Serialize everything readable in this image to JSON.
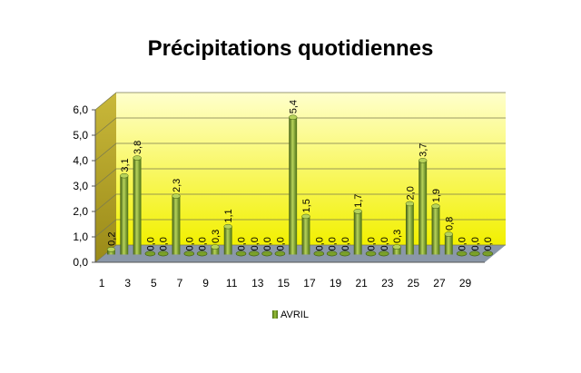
{
  "chart_data": {
    "type": "bar",
    "title": "Précipitations quotidiennes",
    "xlabel": "",
    "ylabel": "",
    "ylim": [
      0,
      6
    ],
    "yticks": [
      "0,0",
      "1,0",
      "2,0",
      "3,0",
      "4,0",
      "5,0",
      "6,0"
    ],
    "categories": [
      "1",
      "2",
      "3",
      "4",
      "5",
      "6",
      "7",
      "8",
      "9",
      "10",
      "11",
      "12",
      "13",
      "14",
      "15",
      "16",
      "17",
      "18",
      "19",
      "20",
      "21",
      "22",
      "23",
      "24",
      "25",
      "26",
      "27",
      "28",
      "29",
      "30"
    ],
    "xtick_labels": [
      "1",
      "3",
      "5",
      "7",
      "9",
      "11",
      "13",
      "15",
      "17",
      "19",
      "21",
      "23",
      "25",
      "27",
      "29"
    ],
    "series": [
      {
        "name": "AVRIL",
        "values": [
          0.2,
          3.1,
          3.8,
          0.0,
          0.0,
          2.3,
          0.0,
          0.0,
          0.3,
          1.1,
          0.0,
          0.0,
          0.0,
          0.0,
          5.4,
          1.5,
          0.0,
          0.0,
          0.0,
          1.7,
          0.0,
          0.0,
          0.3,
          2.0,
          3.7,
          1.9,
          0.8,
          0.0,
          0.0,
          0.0
        ],
        "data_labels": [
          "0,2",
          "3,1",
          "3,8",
          "0,0",
          "0,0",
          "2,3",
          "0,0",
          "0,0",
          "0,3",
          "1,1",
          "0,0",
          "0,0",
          "0,0",
          "0,0",
          "5,4",
          "1,5",
          "0,0",
          "0,0",
          "0,0",
          "1,7",
          "0,0",
          "0,0",
          "0,3",
          "2,0",
          "3,7",
          "1,9",
          "0,8",
          "0,0",
          "0,0",
          "0,0"
        ]
      }
    ],
    "legend_position": "bottom",
    "grid": true,
    "colors": {
      "bar": "#7aa02a",
      "bar_dark": "#3d5a10",
      "bar_light": "#b7d35a",
      "wall_top": "#ffffcc",
      "wall_bottom": "#f2f000",
      "floor": "#8a97a8",
      "side_wall": "#b5a22a"
    }
  }
}
